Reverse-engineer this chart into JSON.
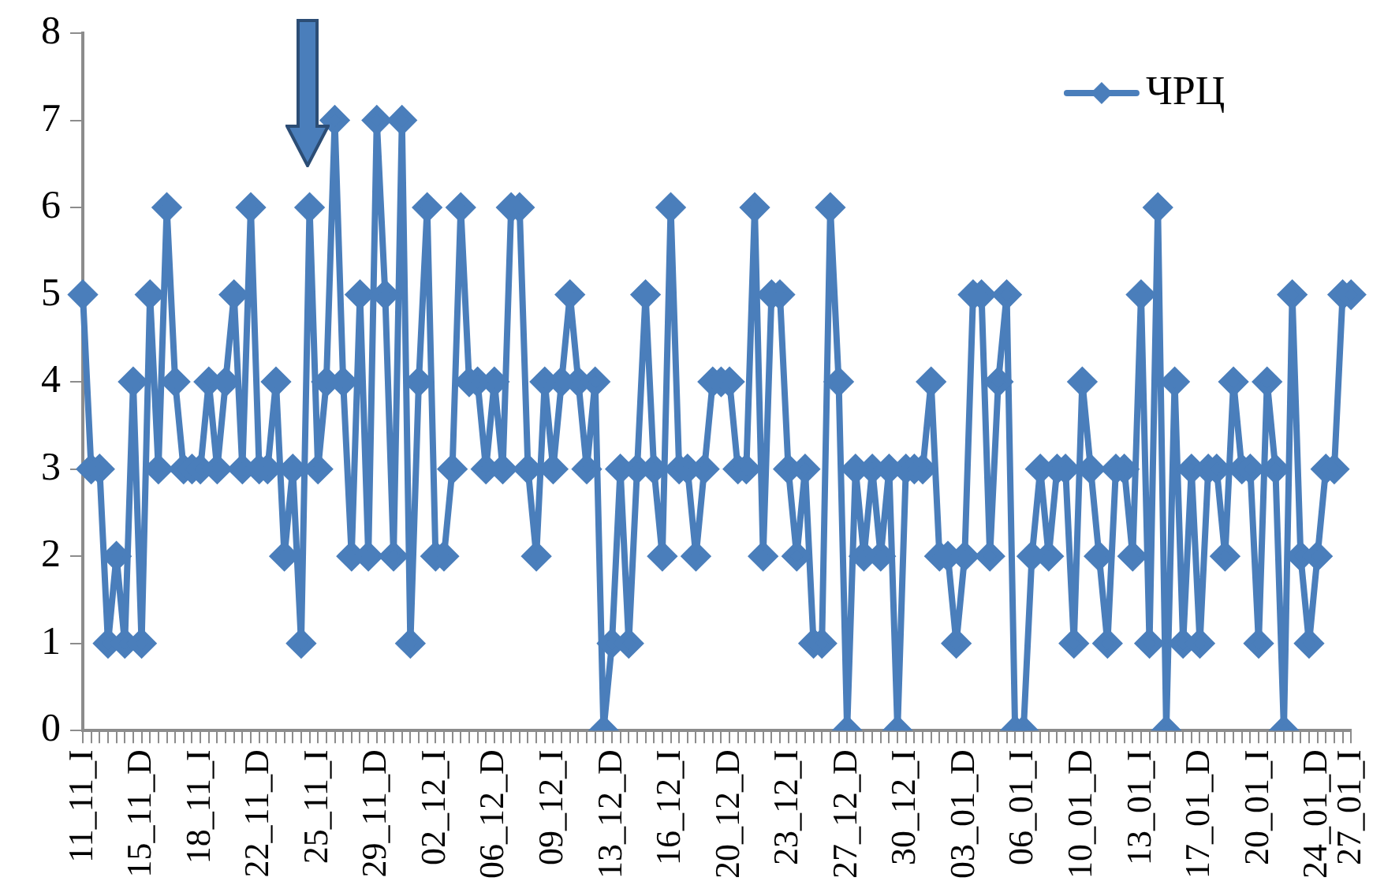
{
  "chart_data": {
    "type": "line",
    "categories": [
      "11_11_I",
      null,
      null,
      null,
      null,
      null,
      null,
      "15_11_D",
      null,
      null,
      null,
      null,
      null,
      null,
      "18_11_I",
      null,
      null,
      null,
      null,
      null,
      null,
      "22_11_D",
      null,
      null,
      null,
      null,
      null,
      null,
      "25_11_I",
      null,
      null,
      null,
      null,
      null,
      null,
      "29_11_D",
      null,
      null,
      null,
      null,
      null,
      null,
      "02_12_I",
      null,
      null,
      null,
      null,
      null,
      null,
      "06_12_D",
      null,
      null,
      null,
      null,
      null,
      null,
      "09_12_I",
      null,
      null,
      null,
      null,
      null,
      null,
      "13_12_D",
      null,
      null,
      null,
      null,
      null,
      null,
      "16_12_I",
      null,
      null,
      null,
      null,
      null,
      null,
      "20_12_D",
      null,
      null,
      null,
      null,
      null,
      null,
      "23_12_I",
      null,
      null,
      null,
      null,
      null,
      null,
      "27_12_D",
      null,
      null,
      null,
      null,
      null,
      null,
      "30_12_I",
      null,
      null,
      null,
      null,
      null,
      null,
      "03_01_D",
      null,
      null,
      null,
      null,
      null,
      null,
      "06_01_I",
      null,
      null,
      null,
      null,
      null,
      null,
      "10_01_D",
      null,
      null,
      null,
      null,
      null,
      null,
      "13_01_I",
      null,
      null,
      null,
      null,
      null,
      null,
      "17_01_D",
      null,
      null,
      null,
      null,
      null,
      null,
      "20_01_I",
      null,
      null,
      null,
      null,
      null,
      null,
      "24_01_D",
      null,
      null,
      null,
      "27_01_I"
    ],
    "series": [
      {
        "name": "ЧРЦ",
        "color": "#4a7ebb",
        "values": [
          5,
          3,
          3,
          1,
          2,
          1,
          4,
          1,
          5,
          3,
          6,
          4,
          3,
          3,
          3,
          4,
          3,
          4,
          5,
          3,
          6,
          3,
          3,
          4,
          2,
          3,
          1,
          6,
          3,
          4,
          7,
          4,
          2,
          5,
          2,
          7,
          5,
          2,
          7,
          1,
          4,
          6,
          2,
          2,
          3,
          6,
          4,
          4,
          3,
          4,
          3,
          6,
          6,
          3,
          2,
          4,
          3,
          4,
          5,
          4,
          3,
          4,
          0,
          1,
          3,
          1,
          3,
          5,
          3,
          2,
          6,
          3,
          3,
          2,
          3,
          4,
          4,
          4,
          3,
          3,
          6,
          2,
          5,
          5,
          3,
          2,
          3,
          1,
          1,
          6,
          4,
          0,
          3,
          2,
          3,
          2,
          3,
          0,
          3,
          3,
          3,
          4,
          2,
          2,
          1,
          2,
          5,
          5,
          2,
          4,
          5,
          0,
          0,
          2,
          3,
          2,
          3,
          3,
          1,
          4,
          3,
          2,
          1,
          3,
          3,
          2,
          5,
          1,
          6,
          0,
          4,
          1,
          3,
          1,
          3,
          3,
          2,
          4,
          3,
          3,
          1,
          4,
          3,
          0,
          5,
          2,
          1,
          2,
          3,
          3,
          5,
          5
        ]
      }
    ],
    "ylim": [
      0,
      8
    ],
    "yticks": [
      0,
      1,
      2,
      3,
      4,
      5,
      6,
      7,
      8
    ],
    "grid": false,
    "legend": "top right",
    "marker": "diamond",
    "line_style": "solid"
  }
}
